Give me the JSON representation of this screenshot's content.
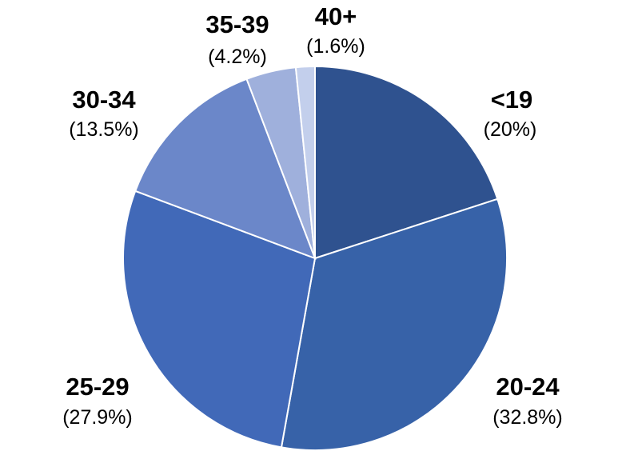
{
  "chart_data": {
    "type": "pie",
    "title": "",
    "start_angle_deg": 0,
    "direction": "clockwise",
    "slices": [
      {
        "label": "<19",
        "value": 20,
        "percent_text": "(20%)",
        "color": "#2F528F"
      },
      {
        "label": "20-24",
        "value": 32.8,
        "percent_text": "(32.8%)",
        "color": "#3762A8"
      },
      {
        "label": "25-29",
        "value": 27.9,
        "percent_text": "(27.9%)",
        "color": "#4169B8"
      },
      {
        "label": "30-34",
        "value": 13.5,
        "percent_text": "(13.5%)",
        "color": "#6B87C9"
      },
      {
        "label": "35-39",
        "value": 4.2,
        "percent_text": "(4.2%)",
        "color": "#9FB0DC"
      },
      {
        "label": "40+",
        "value": 1.6,
        "percent_text": "(1.6%)",
        "color": "#C3CFEC"
      }
    ],
    "slice_border_color": "#FFFFFF",
    "legend": "none"
  }
}
